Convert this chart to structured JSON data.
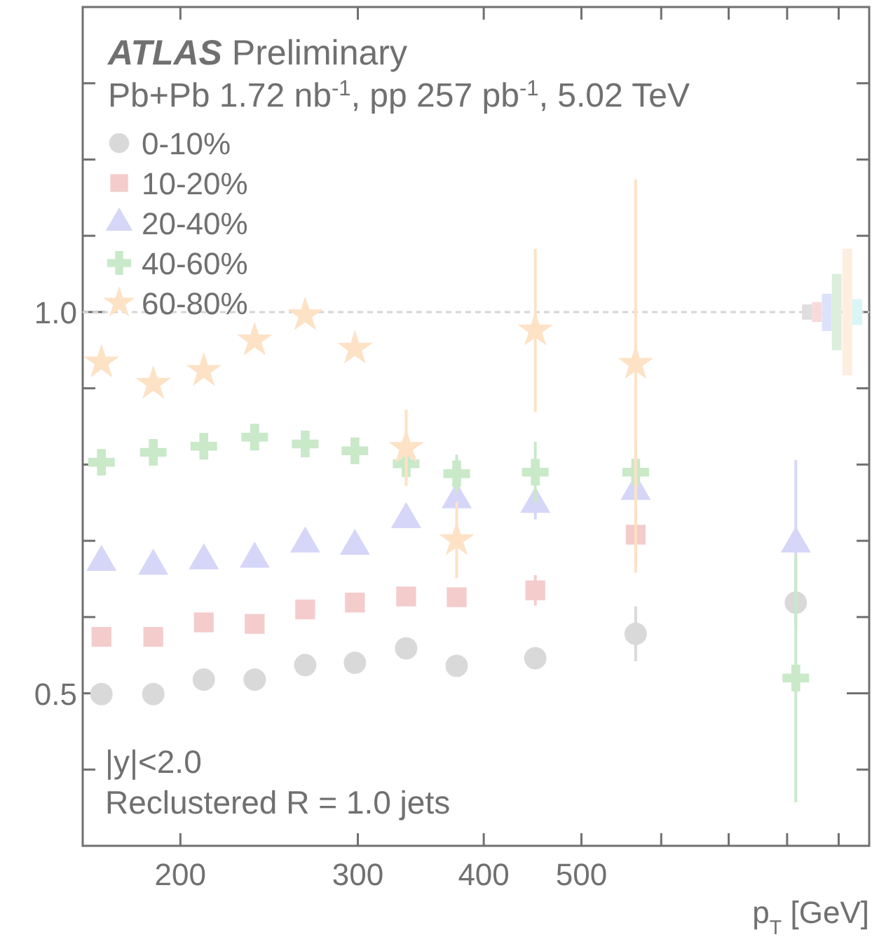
{
  "chart_data": {
    "type": "scatter",
    "title": "ATLAS Preliminary",
    "subtitle": "Pb+Pb 1.72 nb$^{-1}$, pp 257 pb$^{-1}$, 5.02 TeV",
    "xlabel": "p$_{T}$ [GeV]",
    "annotations": [
      "|y|<2.0",
      "Reclustered R = 1.0 jets"
    ],
    "log": "x",
    "xlim": [
      160,
      965
    ],
    "ylim": [
      0.3,
      1.4
    ],
    "xticks": [
      200,
      300,
      400,
      500,
      {
        "value": 600,
        "label": null
      },
      {
        "value": 700,
        "label": null
      },
      {
        "value": 800,
        "label": null
      },
      {
        "value": 900,
        "label": null
      }
    ],
    "yticks": [
      {
        "value": 0.4,
        "label": null
      },
      0.5,
      {
        "value": 0.6,
        "label": null
      },
      {
        "value": 0.7,
        "label": null
      },
      {
        "value": 0.8,
        "label": null
      },
      {
        "value": 0.9,
        "label": null
      },
      {
        "value": 1.0,
        "label": "1.0"
      },
      {
        "value": 1.1,
        "label": null
      },
      {
        "value": 1.2,
        "label": null
      },
      {
        "value": 1.3,
        "label": null
      }
    ],
    "grid": false,
    "legend": "top left",
    "x": [
      167,
      188,
      211,
      237,
      266,
      298,
      335,
      376,
      450,
      566,
      816
    ],
    "ref_lines": [
      {
        "axis": "y",
        "value": 1.0,
        "line_style": "dashed",
        "color": "#d6d6d6"
      }
    ],
    "series": [
      {
        "name": "0-10%",
        "color": "#d9d9d9",
        "marker": "circle",
        "values": [
          0.499,
          0.499,
          0.518,
          0.518,
          0.537,
          0.54,
          0.559,
          0.536,
          0.546,
          0.578,
          0.619
        ],
        "errors": [
          null,
          null,
          null,
          null,
          null,
          null,
          null,
          null,
          0.01,
          0.036,
          null
        ]
      },
      {
        "name": "10-20%",
        "color": "#f4cccc",
        "marker": "square",
        "values": [
          0.574,
          0.574,
          0.593,
          0.591,
          0.61,
          0.619,
          0.627,
          0.626,
          0.635,
          0.708,
          null
        ],
        "errors": [
          null,
          null,
          null,
          null,
          null,
          null,
          null,
          0.01,
          0.02,
          0.037,
          null
        ]
      },
      {
        "name": "20-40%",
        "color": "#d6d6f8",
        "marker": "triangle",
        "values": [
          0.672,
          0.667,
          0.674,
          0.676,
          0.696,
          0.693,
          0.728,
          0.754,
          0.748,
          0.765,
          0.696
        ],
        "errors": [
          null,
          null,
          null,
          null,
          null,
          null,
          null,
          null,
          0.02,
          null,
          0.11
        ]
      },
      {
        "name": "40-60%",
        "color": "#c9e9c9",
        "marker": "cross",
        "values": [
          0.803,
          0.816,
          0.824,
          0.836,
          0.827,
          0.818,
          0.801,
          0.788,
          0.79,
          0.79,
          0.52
        ],
        "errors": [
          null,
          null,
          null,
          null,
          null,
          null,
          null,
          0.025,
          0.04,
          0.04,
          [
            0.357,
            0.682
          ]
        ]
      },
      {
        "name": "60-80%",
        "color": "#fde2c6",
        "marker": "star",
        "values": [
          0.934,
          0.906,
          0.923,
          0.963,
          0.996,
          0.952,
          0.822,
          0.701,
          0.976,
          0.932,
          null
        ],
        "errors": [
          null,
          null,
          null,
          null,
          null,
          null,
          0.05,
          0.05,
          0.107,
          [
            0.658,
            1.174
          ],
          null
        ]
      },
      {
        "type": "bar",
        "color": "#dedede",
        "x": [
          837
        ],
        "base": [
          0.99
        ],
        "values": [
          0.02
        ]
      },
      {
        "type": "bar",
        "color": "#f7dada",
        "x": [
          856
        ],
        "base": [
          0.987
        ],
        "values": [
          0.026
        ]
      },
      {
        "type": "bar",
        "color": "#dde2fb",
        "x": [
          876
        ],
        "base": [
          0.975
        ],
        "values": [
          0.049
        ]
      },
      {
        "type": "bar",
        "color": "#dcefdc",
        "x": [
          896
        ],
        "base": [
          0.95
        ],
        "values": [
          0.1
        ]
      },
      {
        "type": "bar",
        "color": "#fdeee0",
        "x": [
          918
        ],
        "base": [
          0.917
        ],
        "values": [
          0.166
        ]
      },
      {
        "type": "bar",
        "color": "#d9f6f6",
        "x": [
          939
        ],
        "base": [
          0.983
        ],
        "values": [
          0.034
        ]
      }
    ]
  }
}
